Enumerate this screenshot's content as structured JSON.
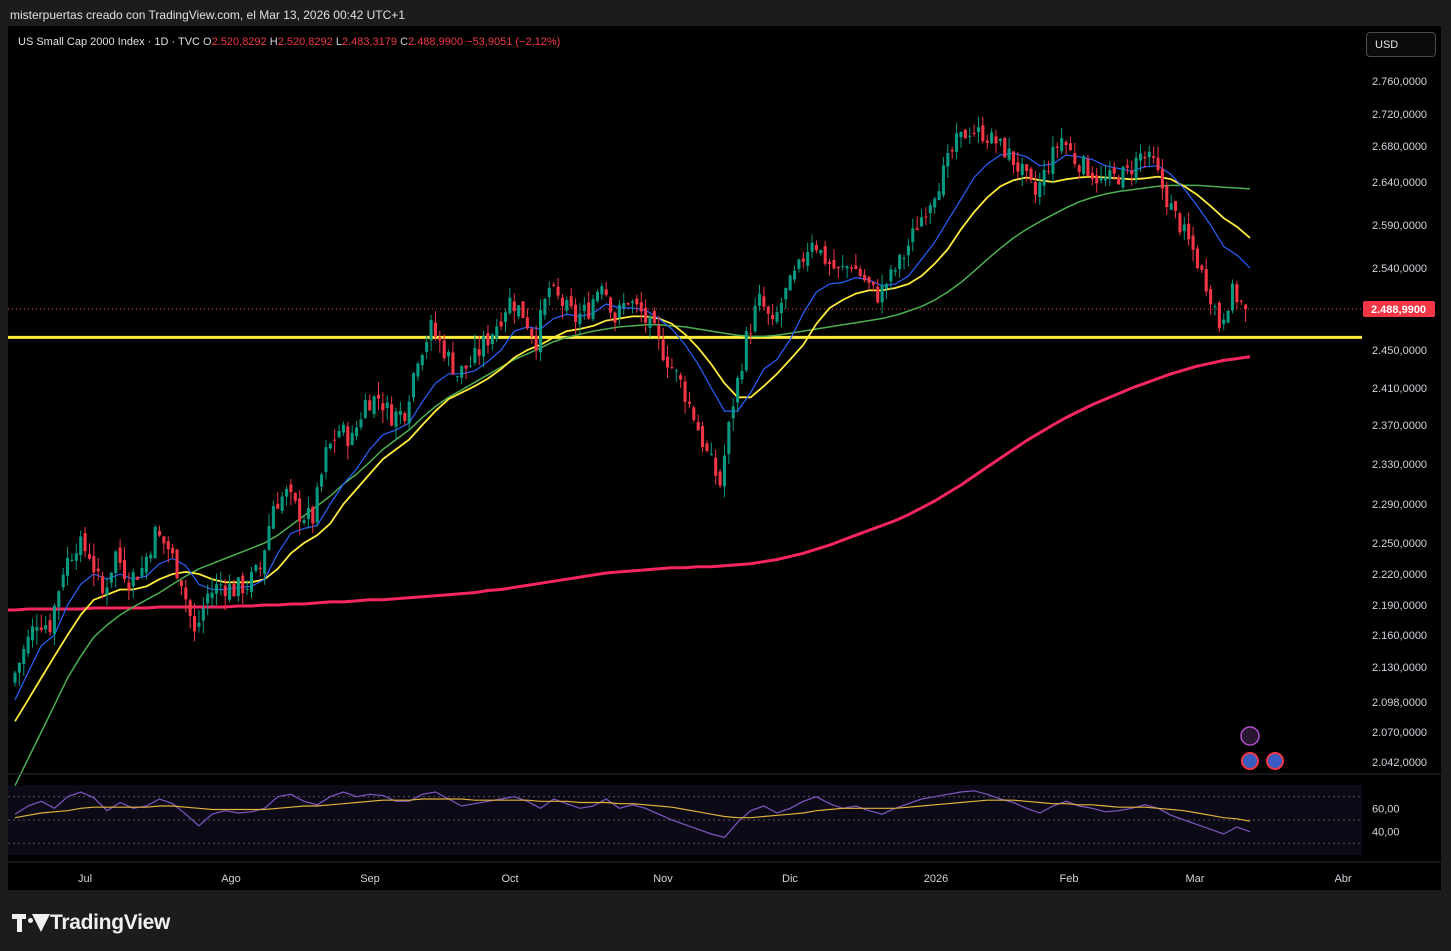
{
  "header": {
    "caption": "misterpuertas creado con TradingView.com, el Mar 13, 2026 00:42 UTC+1"
  },
  "legend": {
    "title": "US Small Cap 2000 Index · 1D · TVC",
    "o_key": "O",
    "o_val": "2.520,8292",
    "h_key": "H",
    "h_val": "2.520,8292",
    "l_key": "L",
    "l_val": "2.483,3179",
    "c_key": "C",
    "c_val": "2.488,9900",
    "change": "−53,9051 (−2,12%)"
  },
  "currency_button": "USD",
  "brand": "TradingView",
  "colors": {
    "up": "#089981",
    "down": "#f23645",
    "ma_fast": "#2962ff",
    "ma_mid": "#ffeb3b",
    "ma_slow": "#4caf50",
    "ma_long": "#f7265f",
    "support": "#ffeb3b",
    "rsi": "#7e57c2",
    "rsi_ma": "#e0b23a"
  },
  "chart_data": {
    "type": "candlestick",
    "price_axis_ticks": [
      "2.760,0000",
      "2.720,0000",
      "2.680,0000",
      "2.640,0000",
      "2.590,0000",
      "2.540,0000",
      "2.490,0000",
      "2.450,0000",
      "2.410,0000",
      "2.370,0000",
      "2.330,0000",
      "2.290,0000",
      "2.250,0000",
      "2.220,0000",
      "2.190,0000",
      "2.160,0000",
      "2.130,0000",
      "2.098,0000",
      "2.070,0000",
      "2.042,0000"
    ],
    "last_price_label": "2.488,9900",
    "last_price": 2488.99,
    "support_level": 2462,
    "time_axis_labels": [
      "Jul",
      "Ago",
      "Sep",
      "Oct",
      "Nov",
      "Dic",
      "2026",
      "Feb",
      "Mar",
      "Abr"
    ],
    "price_path": [
      2115,
      2145,
      2175,
      2170,
      2225,
      2250,
      2240,
      2200,
      2240,
      2215,
      2225,
      2260,
      2245,
      2215,
      2160,
      2200,
      2210,
      2205,
      2210,
      2225,
      2290,
      2300,
      2280,
      2275,
      2340,
      2365,
      2355,
      2395,
      2400,
      2380,
      2385,
      2445,
      2470,
      2450,
      2425,
      2435,
      2455,
      2475,
      2500,
      2485,
      2460,
      2515,
      2495,
      2480,
      2490,
      2525,
      2480,
      2500,
      2485,
      2465,
      2440,
      2415,
      2380,
      2340,
      2310,
      2395,
      2460,
      2500,
      2470,
      2510,
      2540,
      2575,
      2550,
      2535,
      2545,
      2525,
      2505,
      2530,
      2555,
      2590,
      2620,
      2650,
      2685,
      2700,
      2695,
      2685,
      2670,
      2650,
      2625,
      2660,
      2690,
      2665,
      2655,
      2640,
      2645,
      2650,
      2670,
      2660,
      2620,
      2590,
      2560,
      2520,
      2475,
      2510,
      2489
    ],
    "ma_fast": [
      2100,
      2125,
      2150,
      2160,
      2190,
      2210,
      2220,
      2215,
      2220,
      2215,
      2218,
      2230,
      2235,
      2228,
      2210,
      2205,
      2205,
      2207,
      2208,
      2215,
      2240,
      2260,
      2265,
      2268,
      2290,
      2310,
      2325,
      2345,
      2360,
      2365,
      2372,
      2395,
      2415,
      2425,
      2425,
      2428,
      2438,
      2450,
      2468,
      2472,
      2470,
      2480,
      2484,
      2482,
      2485,
      2495,
      2490,
      2490,
      2488,
      2480,
      2470,
      2455,
      2435,
      2410,
      2385,
      2385,
      2405,
      2430,
      2440,
      2460,
      2485,
      2510,
      2520,
      2522,
      2528,
      2525,
      2518,
      2520,
      2530,
      2550,
      2570,
      2595,
      2620,
      2645,
      2660,
      2670,
      2672,
      2668,
      2658,
      2660,
      2670,
      2668,
      2665,
      2658,
      2655,
      2652,
      2657,
      2658,
      2648,
      2632,
      2612,
      2590,
      2565,
      2555,
      2540
    ],
    "ma_mid": [
      2080,
      2100,
      2120,
      2140,
      2160,
      2180,
      2195,
      2200,
      2205,
      2205,
      2208,
      2215,
      2220,
      2222,
      2220,
      2215,
      2212,
      2212,
      2212,
      2215,
      2225,
      2240,
      2250,
      2258,
      2270,
      2290,
      2305,
      2320,
      2335,
      2345,
      2355,
      2370,
      2385,
      2398,
      2405,
      2412,
      2420,
      2430,
      2442,
      2450,
      2455,
      2462,
      2468,
      2470,
      2473,
      2478,
      2480,
      2482,
      2482,
      2480,
      2475,
      2465,
      2452,
      2435,
      2415,
      2400,
      2400,
      2412,
      2425,
      2440,
      2455,
      2475,
      2490,
      2500,
      2508,
      2512,
      2512,
      2515,
      2520,
      2530,
      2545,
      2562,
      2585,
      2605,
      2622,
      2635,
      2642,
      2645,
      2642,
      2640,
      2643,
      2645,
      2646,
      2645,
      2644,
      2643,
      2644,
      2646,
      2643,
      2635,
      2625,
      2612,
      2598,
      2588,
      2575
    ],
    "ma_slow": [
      2020,
      2045,
      2070,
      2095,
      2120,
      2140,
      2158,
      2170,
      2180,
      2188,
      2195,
      2202,
      2210,
      2218,
      2225,
      2230,
      2235,
      2240,
      2245,
      2250,
      2258,
      2268,
      2278,
      2288,
      2298,
      2310,
      2320,
      2332,
      2345,
      2355,
      2365,
      2378,
      2390,
      2400,
      2408,
      2416,
      2424,
      2432,
      2440,
      2446,
      2452,
      2458,
      2462,
      2465,
      2468,
      2470,
      2472,
      2473,
      2474,
      2474,
      2473,
      2472,
      2470,
      2468,
      2466,
      2464,
      2463,
      2463,
      2464,
      2466,
      2468,
      2470,
      2472,
      2474,
      2476,
      2478,
      2480,
      2483,
      2487,
      2492,
      2500,
      2510,
      2522,
      2536,
      2550,
      2563,
      2575,
      2585,
      2594,
      2602,
      2610,
      2617,
      2622,
      2626,
      2629,
      2631,
      2633,
      2635,
      2636,
      2636,
      2636,
      2635,
      2634,
      2633,
      2632
    ],
    "ma_long": [
      2185,
      2186,
      2186,
      2186,
      2186,
      2186,
      2187,
      2187,
      2187,
      2187,
      2187,
      2188,
      2188,
      2188,
      2188,
      2188,
      2188,
      2189,
      2189,
      2190,
      2190,
      2191,
      2191,
      2192,
      2193,
      2193,
      2194,
      2195,
      2195,
      2196,
      2197,
      2198,
      2199,
      2200,
      2201,
      2202,
      2204,
      2205,
      2207,
      2209,
      2211,
      2213,
      2215,
      2217,
      2219,
      2221,
      2222,
      2223,
      2224,
      2225,
      2226,
      2226,
      2227,
      2227,
      2228,
      2229,
      2230,
      2232,
      2234,
      2237,
      2240,
      2244,
      2248,
      2253,
      2258,
      2263,
      2268,
      2273,
      2279,
      2286,
      2293,
      2301,
      2309,
      2318,
      2327,
      2336,
      2345,
      2354,
      2362,
      2370,
      2378,
      2385,
      2392,
      2398,
      2404,
      2410,
      2415,
      2420,
      2425,
      2429,
      2433,
      2436,
      2439,
      2441,
      2443
    ],
    "rsi_panel_ticks": [
      "60,00",
      "40,00"
    ],
    "rsi": [
      55,
      62,
      66,
      60,
      70,
      74,
      69,
      58,
      65,
      60,
      62,
      68,
      64,
      55,
      45,
      55,
      58,
      56,
      57,
      60,
      70,
      72,
      66,
      63,
      70,
      74,
      70,
      72,
      71,
      66,
      66,
      72,
      74,
      68,
      62,
      64,
      66,
      68,
      70,
      66,
      60,
      68,
      64,
      60,
      62,
      68,
      60,
      63,
      60,
      55,
      50,
      46,
      42,
      38,
      35,
      48,
      58,
      62,
      56,
      60,
      66,
      70,
      64,
      60,
      62,
      58,
      55,
      60,
      64,
      68,
      70,
      72,
      74,
      75,
      72,
      68,
      65,
      60,
      56,
      62,
      66,
      62,
      60,
      57,
      58,
      60,
      63,
      60,
      54,
      50,
      46,
      42,
      38,
      44,
      40
    ],
    "rsi_ma": [
      52,
      54,
      56,
      57,
      58,
      60,
      61,
      61,
      61,
      61,
      61,
      62,
      62,
      61,
      60,
      59,
      59,
      59,
      59,
      59,
      60,
      61,
      62,
      62,
      63,
      64,
      65,
      66,
      67,
      67,
      67,
      68,
      68,
      68,
      68,
      67,
      67,
      67,
      67,
      67,
      66,
      66,
      66,
      65,
      65,
      65,
      64,
      64,
      63,
      62,
      61,
      59,
      57,
      55,
      53,
      52,
      52,
      53,
      54,
      55,
      56,
      58,
      59,
      60,
      60,
      60,
      60,
      60,
      61,
      62,
      63,
      64,
      65,
      66,
      67,
      67,
      67,
      66,
      65,
      64,
      64,
      63,
      63,
      62,
      61,
      61,
      61,
      60,
      59,
      58,
      56,
      54,
      52,
      51,
      49
    ]
  }
}
